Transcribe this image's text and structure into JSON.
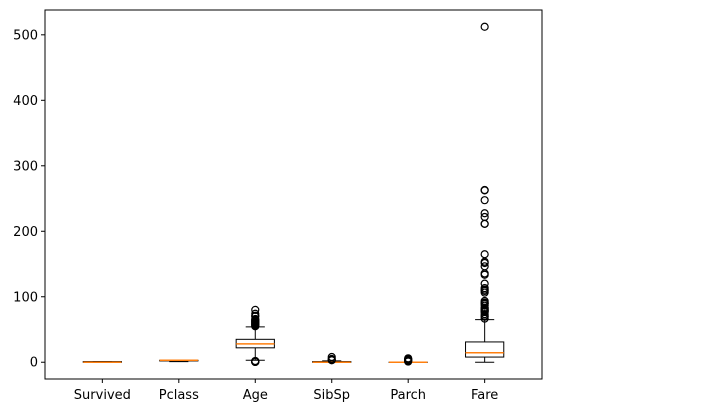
{
  "chart_data": {
    "type": "boxplot",
    "title": "",
    "xlabel": "",
    "ylabel": "",
    "ylim": [
      -25.6,
      537.9
    ],
    "yticks": [
      0,
      100,
      200,
      300,
      400,
      500
    ],
    "grid": false,
    "median_color": "#ff7f0e",
    "box_color": "#000000",
    "categories": [
      "Survived",
      "Pclass",
      "Age",
      "SibSp",
      "Parch",
      "Fare"
    ],
    "boxes": [
      {
        "name": "Survived",
        "whisker_low": 0,
        "q1": 0,
        "median": 0,
        "q3": 1,
        "whisker_high": 1,
        "outliers": []
      },
      {
        "name": "Pclass",
        "whisker_low": 1,
        "q1": 2,
        "median": 3,
        "q3": 3,
        "whisker_high": 3,
        "outliers": []
      },
      {
        "name": "Age",
        "whisker_low": 3,
        "q1": 22,
        "median": 28,
        "q3": 35,
        "whisker_high": 54,
        "outliers": [
          0.42,
          0.67,
          0.75,
          0.83,
          0.92,
          1,
          2,
          55,
          56,
          57,
          58,
          59,
          60,
          61,
          62,
          63,
          64,
          65,
          66,
          70,
          71,
          74,
          80
        ]
      },
      {
        "name": "SibSp",
        "whisker_low": 0,
        "q1": 0,
        "median": 0,
        "q3": 1,
        "whisker_high": 2,
        "outliers": [
          3,
          4,
          5,
          8
        ]
      },
      {
        "name": "Parch",
        "whisker_low": 0,
        "q1": 0,
        "median": 0,
        "q3": 0,
        "whisker_high": 0,
        "outliers": [
          1,
          2,
          3,
          4,
          5,
          6
        ]
      },
      {
        "name": "Fare",
        "whisker_low": 0,
        "q1": 7.9,
        "median": 14.5,
        "q3": 31,
        "whisker_high": 65,
        "outliers": [
          66.6,
          69.55,
          71,
          73.5,
          76.7,
          77.3,
          78.85,
          79.2,
          80,
          82.2,
          83.15,
          86.5,
          89.1,
          90,
          91.1,
          93.5,
          106.4,
          108.9,
          110.9,
          113.3,
          120,
          133.65,
          135.6,
          146.5,
          151.55,
          153.5,
          164.9,
          211.3,
          211.5,
          221.8,
          227.5,
          247.5,
          262.4,
          263,
          512.3
        ]
      }
    ]
  }
}
